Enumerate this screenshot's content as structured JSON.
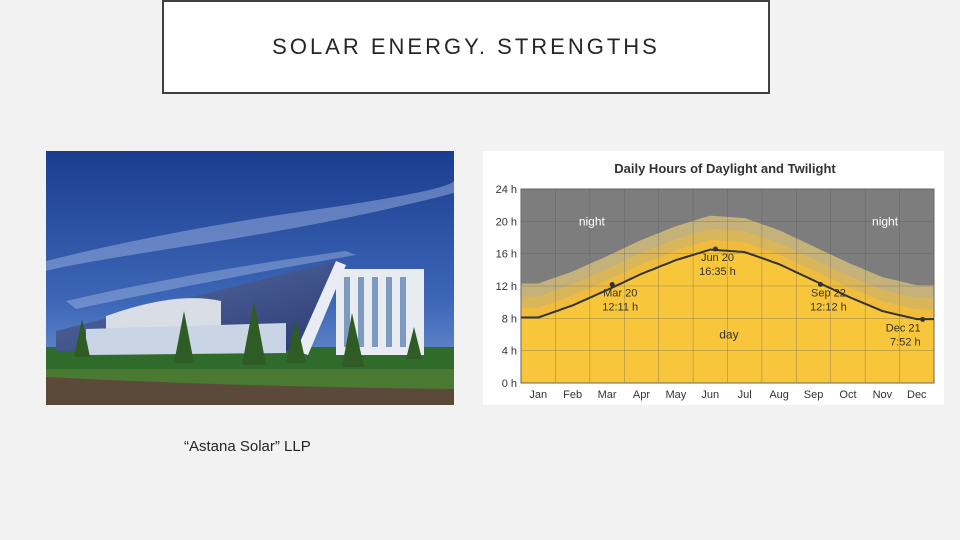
{
  "slide": {
    "title": "SOLAR ENERGY. STRENGTHS",
    "caption": "“Astana Solar” LLP"
  },
  "colors": {
    "day": "#f7c63a",
    "twilight_inner": "#f0bc3e",
    "twilight_mid": "#d9b65a",
    "twilight_outer": "#c4b27a",
    "night": "#7d7d7d",
    "grid": "#5a5a5a",
    "line": "#333333"
  },
  "chart_data": {
    "type": "area",
    "title": "Daily Hours of Daylight and Twilight",
    "categories": [
      "Jan",
      "Feb",
      "Mar",
      "Apr",
      "May",
      "Jun",
      "Jul",
      "Aug",
      "Sep",
      "Oct",
      "Nov",
      "Dec"
    ],
    "y_ticks": [
      "0 h",
      "4 h",
      "8 h",
      "12 h",
      "16 h",
      "20 h",
      "24 h"
    ],
    "ylim": [
      0,
      24
    ],
    "series": [
      {
        "values": [
          8.1,
          9.6,
          11.5,
          13.5,
          15.2,
          16.5,
          16.2,
          14.7,
          12.7,
          10.7,
          8.9,
          7.9
        ]
      }
    ],
    "region_labels": {
      "night_left": "night",
      "night_right": "night",
      "day": "day"
    },
    "annotations": [
      {
        "date": "Mar 20",
        "value": "12:11 h",
        "hours": 12.18,
        "month_pos": 2.65
      },
      {
        "date": "Jun 20",
        "value": "16:35 h",
        "hours": 16.58,
        "month_pos": 5.65
      },
      {
        "date": "Sep 22",
        "value": "12:12 h",
        "hours": 12.2,
        "month_pos": 8.7
      },
      {
        "date": "Dec 21",
        "value": "7:52 h",
        "hours": 7.87,
        "month_pos": 11.67
      }
    ]
  }
}
